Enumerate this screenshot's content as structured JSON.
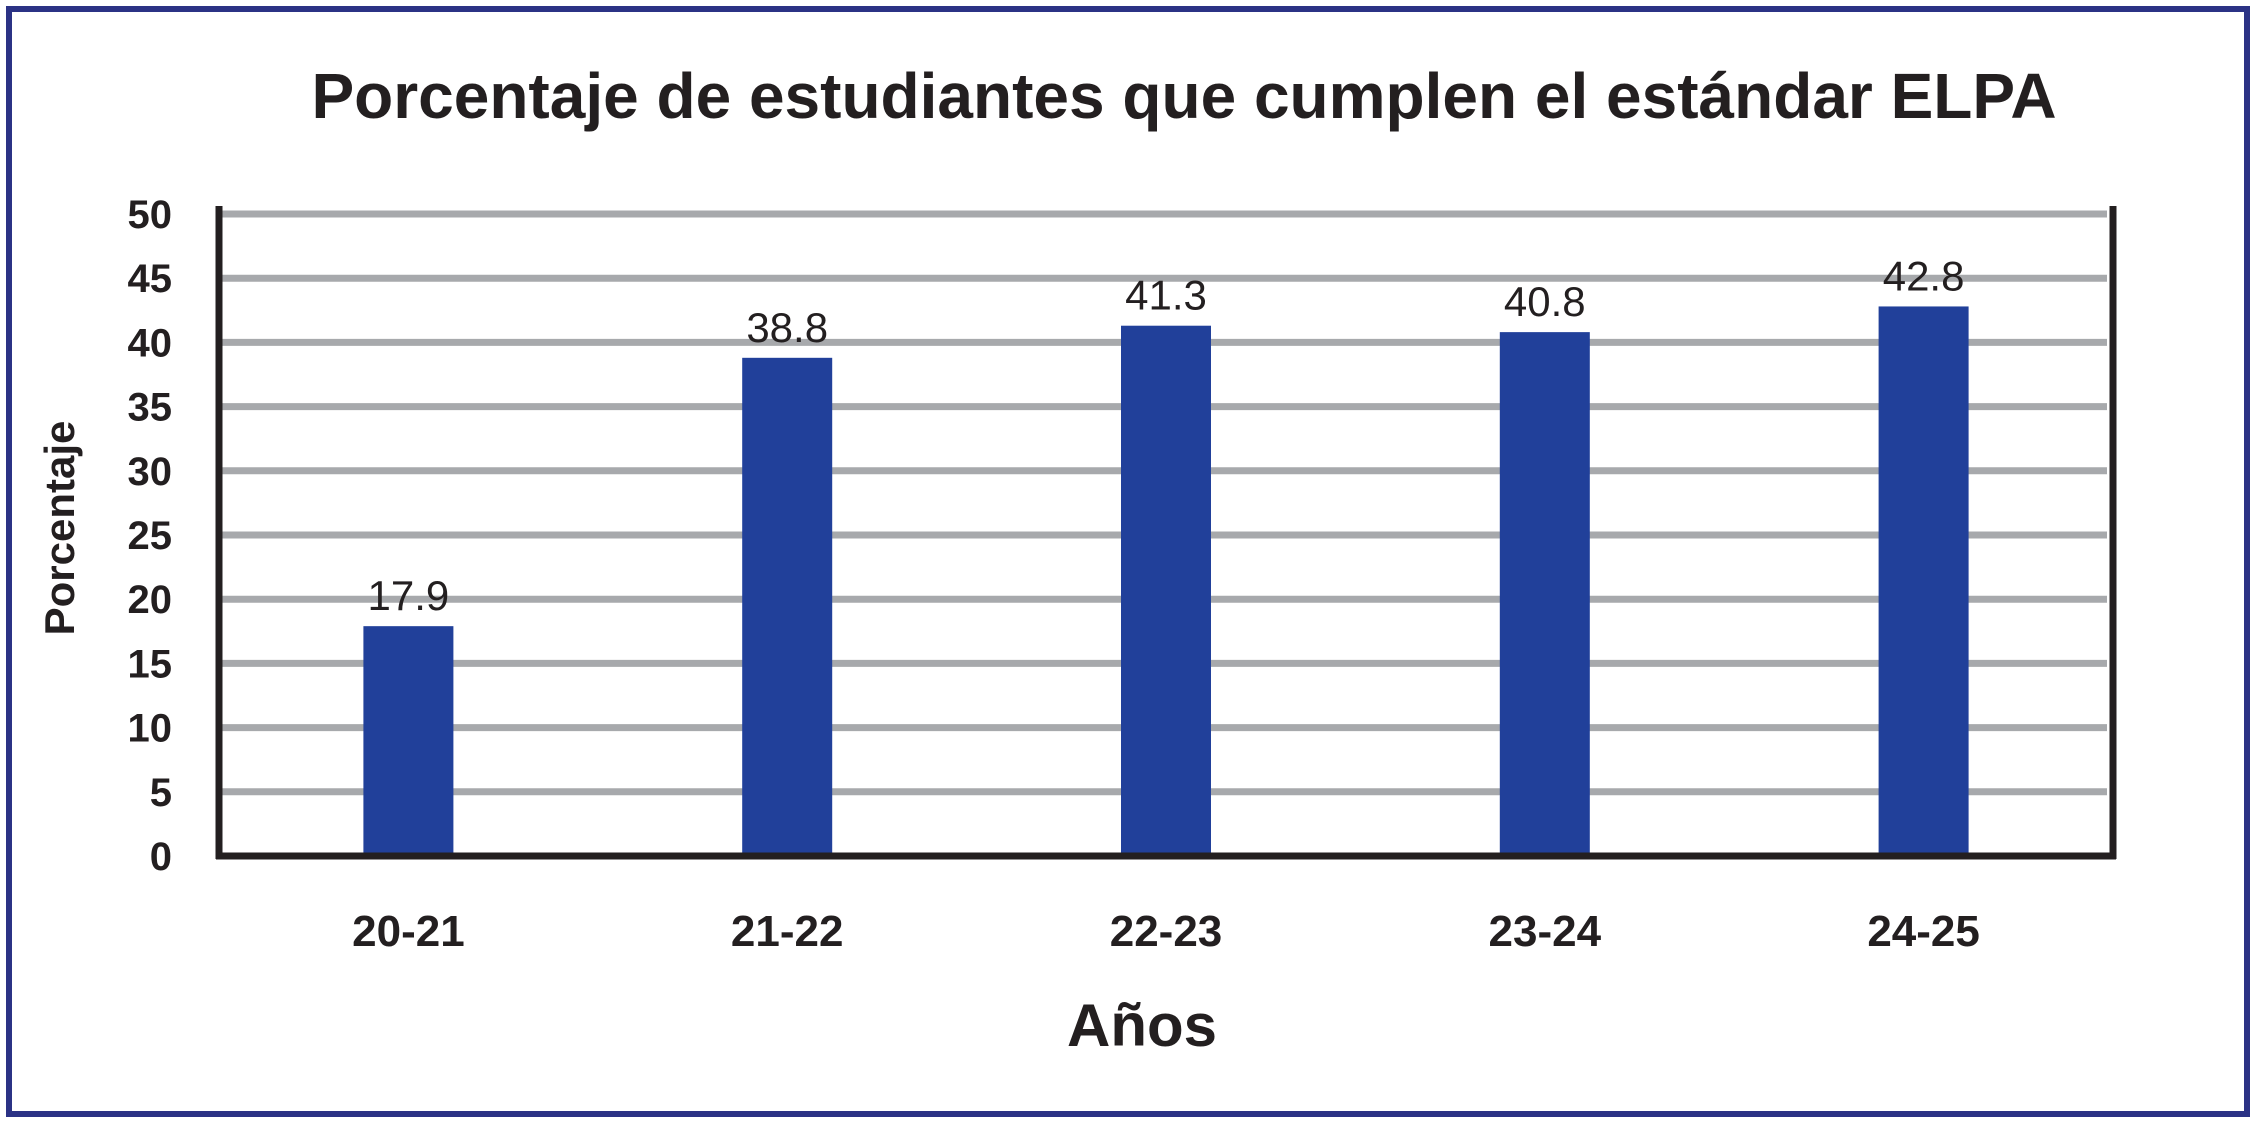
{
  "chart_data": {
    "type": "bar",
    "title": "Porcentaje de estudiantes que cumplen el estándar ELPA",
    "xlabel": "Años",
    "ylabel": "Porcentaje",
    "categories": [
      "20-21",
      "21-22",
      "22-23",
      "23-24",
      "24-25"
    ],
    "values": [
      17.9,
      38.8,
      41.3,
      40.8,
      42.8
    ],
    "data_labels": [
      "17.9",
      "38.8",
      "41.3",
      "40.8",
      "42.8"
    ],
    "ylim": [
      0,
      50
    ],
    "yticks": [
      0,
      5,
      10,
      15,
      20,
      25,
      30,
      35,
      40,
      45,
      50
    ],
    "grid": true,
    "legend": "none",
    "colors": {
      "bar": "#21409a",
      "grid": "#a7a9ac",
      "axis": "#231f20",
      "frame": "#2b3285"
    }
  }
}
